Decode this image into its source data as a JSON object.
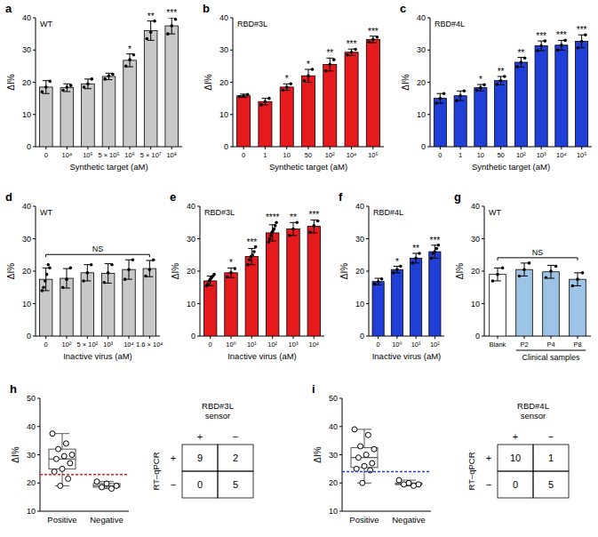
{
  "chart_data": [
    {
      "type": "bar",
      "title": "a",
      "subtitle": "WT",
      "x_label": "Synthetic target (aM)",
      "y_label": "ΔI%",
      "categories": [
        "0",
        "10⁴",
        "10⁵",
        "5 × 10⁵",
        "10⁶",
        "5 × 10⁷",
        "10⁸"
      ],
      "values": [
        18.5,
        18.3,
        19.5,
        21.8,
        26.8,
        36,
        37.5
      ],
      "errors": [
        2,
        1.2,
        1.5,
        1,
        2,
        3,
        2.5
      ],
      "points": [
        [
          17,
          18.5,
          20.3
        ],
        [
          17.5,
          18.5,
          19
        ],
        [
          18.5,
          19.5,
          21
        ],
        [
          21,
          22,
          22.5
        ],
        [
          25,
          27,
          28.5
        ],
        [
          33.5,
          35.5,
          39
        ],
        [
          35,
          37.5,
          39.5
        ]
      ],
      "significance": [
        null,
        null,
        null,
        null,
        "*",
        "**",
        "***"
      ],
      "color": "#c8c8c8",
      "ylim": [
        0,
        40
      ],
      "yticks": [
        0,
        10,
        20,
        30,
        40
      ]
    },
    {
      "type": "bar",
      "title": "b",
      "subtitle": "RBD#3L",
      "x_label": "Synthetic target (aM)",
      "y_label": "ΔI%",
      "categories": [
        "0",
        "1",
        "10",
        "50",
        "10²",
        "10⁴",
        "10⁵"
      ],
      "values": [
        15.8,
        14,
        18.5,
        22,
        25.5,
        29.3,
        33.3
      ],
      "errors": [
        0.5,
        1,
        1,
        2,
        2,
        1,
        1
      ],
      "points": [
        [
          15.5,
          15.8,
          16.2
        ],
        [
          13,
          14,
          15
        ],
        [
          17.5,
          18.5,
          19.5
        ],
        [
          20.5,
          22,
          24
        ],
        [
          23.5,
          25.5,
          27
        ],
        [
          28.5,
          29.3,
          30.2
        ],
        [
          32.5,
          33.3,
          34
        ]
      ],
      "significance": [
        null,
        null,
        "*",
        "*",
        "**",
        "***",
        "***"
      ],
      "color": "#e41a1c",
      "ylim": [
        0,
        40
      ],
      "yticks": [
        0,
        10,
        20,
        30,
        40
      ]
    },
    {
      "type": "bar",
      "title": "c",
      "subtitle": "RBD#4L",
      "x_label": "Synthetic target (aM)",
      "y_label": "ΔI%",
      "categories": [
        "0",
        "1",
        "10",
        "50",
        "10²",
        "10³",
        "10⁴",
        "10⁵"
      ],
      "values": [
        15,
        15.8,
        18.3,
        20.5,
        26.2,
        31.3,
        31.5,
        32.7
      ],
      "errors": [
        1.5,
        1.5,
        1,
        1.3,
        1.5,
        1.5,
        1.5,
        2
      ],
      "points": [
        [
          13.5,
          15,
          16.5
        ],
        [
          14.3,
          15.8,
          17.3
        ],
        [
          17.5,
          18.3,
          19.2
        ],
        [
          19.3,
          20.5,
          21.8
        ],
        [
          24.8,
          26.2,
          27.5
        ],
        [
          29.8,
          31.3,
          32.8
        ],
        [
          30,
          31.5,
          33
        ],
        [
          30.7,
          32.7,
          34.7
        ]
      ],
      "significance": [
        null,
        null,
        "*",
        "**",
        "**",
        "***",
        "***",
        "***"
      ],
      "color": "#1f3fd6",
      "ylim": [
        0,
        40
      ],
      "yticks": [
        0,
        10,
        20,
        30,
        40
      ]
    },
    {
      "type": "bar",
      "title": "d",
      "subtitle": "WT",
      "x_label": "Inactive virus (aM)",
      "y_label": "ΔI%",
      "categories": [
        "0",
        "10²",
        "5 × 10²",
        "10³",
        "10⁴",
        "1.6 × 10⁴"
      ],
      "values": [
        17.5,
        17.8,
        19.5,
        19.3,
        20.5,
        20.8
      ],
      "errors": [
        3.5,
        3,
        2.5,
        3,
        3,
        2.5
      ],
      "points": [
        [
          14,
          15,
          17,
          19,
          22,
          21
        ],
        [
          15,
          17.5,
          21
        ],
        [
          17,
          19.5,
          22
        ],
        [
          16.5,
          19.5,
          22
        ],
        [
          17.5,
          20.5,
          23.5
        ],
        [
          18.5,
          20.5,
          23.5
        ]
      ],
      "bracket": "NS",
      "color": "#c8c8c8",
      "ylim": [
        0,
        40
      ],
      "yticks": [
        0,
        10,
        20,
        30,
        40
      ]
    },
    {
      "type": "bar",
      "title": "e",
      "subtitle": "RBD#3L",
      "x_label": "Inactive virus (aM)",
      "y_label": "ΔI%",
      "categories": [
        "0",
        "10⁰",
        "10¹",
        "10²",
        "10³",
        "10⁴"
      ],
      "values": [
        17,
        19.5,
        24.5,
        31.8,
        33,
        33.8
      ],
      "errors": [
        1.5,
        1.5,
        2.5,
        2.5,
        2,
        2
      ],
      "points": [
        [
          15.5,
          16,
          17,
          17.5,
          18,
          18.5,
          19
        ],
        [
          18.2,
          19.5,
          20.8
        ],
        [
          22,
          23.5,
          24.5,
          25,
          26,
          27.5
        ],
        [
          29,
          30,
          31,
          32,
          32.5,
          33,
          34,
          35
        ],
        [
          31,
          33,
          35
        ],
        [
          32,
          34,
          35.5
        ]
      ],
      "significance": [
        null,
        "*",
        "***",
        "****",
        "**",
        "***"
      ],
      "color": "#e41a1c",
      "ylim": [
        0,
        40
      ],
      "yticks": [
        0,
        10,
        20,
        30,
        40
      ]
    },
    {
      "type": "bar",
      "title": "f",
      "subtitle": "RBD#4L",
      "x_label": "Inactive virus (aM)",
      "y_label": "ΔI%",
      "categories": [
        "0",
        "10⁰",
        "10¹",
        "10²"
      ],
      "values": [
        16.8,
        20.5,
        24,
        26
      ],
      "errors": [
        1,
        1,
        1.5,
        2
      ],
      "points": [
        [
          16,
          16.8,
          17.6
        ],
        [
          19.5,
          20.5,
          21.5
        ],
        [
          22.5,
          24,
          25.5
        ],
        [
          24,
          25.5,
          26,
          27,
          28
        ]
      ],
      "significance": [
        null,
        "*",
        "**",
        "***"
      ],
      "color": "#1f3fd6",
      "ylim": [
        0,
        40
      ],
      "yticks": [
        0,
        10,
        20,
        30,
        40
      ]
    },
    {
      "type": "bar",
      "title": "g",
      "subtitle": "WT",
      "y_label": "ΔI%",
      "categories": [
        "Blank",
        "P2",
        "P4",
        "P8"
      ],
      "values": [
        19,
        20.5,
        19.8,
        17.5
      ],
      "errors": [
        2,
        2,
        2,
        2
      ],
      "points": [
        [
          17,
          19,
          21
        ],
        [
          18.5,
          20.5,
          22.5
        ],
        [
          18,
          20,
          21.5
        ],
        [
          15.5,
          17.5,
          19.5
        ]
      ],
      "bracket": "NS",
      "group": {
        "label": "Clinical samples",
        "categories": [
          "P2",
          "P4",
          "P8"
        ]
      },
      "colors": [
        "#ffffff",
        "#9dc3e6",
        "#9dc3e6",
        "#9dc3e6"
      ],
      "ylim": [
        0,
        40
      ],
      "yticks": [
        0,
        10,
        20,
        30,
        40
      ]
    },
    {
      "type": "box",
      "title": "h",
      "y_label": "ΔI%",
      "categories": [
        "Positive",
        "Negative"
      ],
      "boxes": [
        {
          "min": 19,
          "q1": 25,
          "median": 28.5,
          "q3": 32,
          "max": 37.5,
          "points": [
            37.5,
            34,
            32,
            30,
            29.5,
            28.5,
            27,
            25,
            24,
            21.5,
            19
          ]
        },
        {
          "min": 18,
          "q1": 18.5,
          "median": 19,
          "q3": 19.8,
          "max": 20.5,
          "points": [
            20.5,
            19.8,
            19,
            18.5,
            18
          ]
        }
      ],
      "threshold": 23,
      "color": "#e41a1c",
      "ylim": [
        10,
        50
      ],
      "yticks": [
        10,
        20,
        30,
        40,
        50
      ],
      "table": {
        "title": "RBD#3L sensor",
        "row_label": "RT–qPCR",
        "columns": [
          "+",
          "−"
        ],
        "rows": [
          {
            "label": "+",
            "values": [
              9,
              2
            ]
          },
          {
            "label": "−",
            "values": [
              0,
              5
            ]
          }
        ]
      }
    },
    {
      "type": "box",
      "title": "i",
      "y_label": "ΔI%",
      "categories": [
        "Positive",
        "Negative"
      ],
      "boxes": [
        {
          "min": 20,
          "q1": 25.5,
          "median": 29,
          "q3": 32.5,
          "max": 39,
          "points": [
            39,
            37,
            33,
            32,
            30,
            29,
            27,
            26,
            25,
            24.5,
            20
          ]
        },
        {
          "min": 19,
          "q1": 19.5,
          "median": 19.5,
          "q3": 20,
          "max": 21,
          "points": [
            21,
            20,
            19.5,
            19.5,
            19
          ]
        }
      ],
      "threshold": 24,
      "color": "#1f3fd6",
      "ylim": [
        10,
        50
      ],
      "yticks": [
        10,
        20,
        30,
        40,
        50
      ],
      "table": {
        "title": "RBD#4L sensor",
        "row_label": "RT–qPCR",
        "columns": [
          "+",
          "−"
        ],
        "rows": [
          {
            "label": "+",
            "values": [
              10,
              1
            ]
          },
          {
            "label": "−",
            "values": [
              0,
              5
            ]
          }
        ]
      }
    }
  ]
}
